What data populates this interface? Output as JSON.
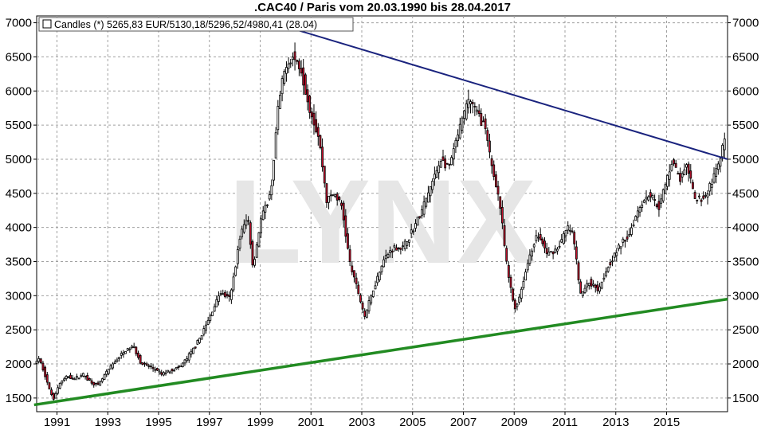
{
  "chart_data": {
    "type": "candlestick",
    "title": ".CAC40 / Paris vom 20.03.1990 bis 28.04.2017",
    "legend": {
      "label": "Candles (*) 5265,83 EUR/5130,18/5296,52/4980,41 (28.04)",
      "placement": "top-left"
    },
    "watermark": "LYNX",
    "y_axis": {
      "ticks": [
        1500,
        2000,
        2500,
        3000,
        3500,
        4000,
        4500,
        5000,
        5500,
        6000,
        6500,
        7000
      ],
      "ylim": [
        1300,
        7100
      ],
      "both_sides": true
    },
    "x_axis": {
      "ticks": [
        "1991",
        "1993",
        "1995",
        "1997",
        "1999",
        "2001",
        "2003",
        "2005",
        "2007",
        "2009",
        "2011",
        "2013",
        "2015"
      ],
      "xlim": [
        1990.2,
        2017.4
      ]
    },
    "grid": true,
    "colors": {
      "up": "#ffffff",
      "down": "#c8102e",
      "resistance": "#1a237e",
      "support": "#228b22",
      "grid": "#a0a0a0",
      "watermark": "#e6e6e6"
    },
    "trendlines": [
      {
        "name": "",
        "role": "resistance",
        "from": [
          1999.95,
          6950
        ],
        "to": [
          2017.4,
          5000
        ]
      },
      {
        "name": "",
        "role": "support",
        "from": [
          1990.1,
          1400
        ],
        "to": [
          2017.4,
          2950
        ]
      }
    ],
    "path_anchors": [
      [
        1990.2,
        2000
      ],
      [
        1990.35,
        2080
      ],
      [
        1990.55,
        1920
      ],
      [
        1990.8,
        1600
      ],
      [
        1990.95,
        1500
      ],
      [
        1991.2,
        1720
      ],
      [
        1991.5,
        1820
      ],
      [
        1991.8,
        1780
      ],
      [
        1992.1,
        1850
      ],
      [
        1992.4,
        1740
      ],
      [
        1992.7,
        1680
      ],
      [
        1993.0,
        1860
      ],
      [
        1993.4,
        2050
      ],
      [
        1993.8,
        2200
      ],
      [
        1994.1,
        2260
      ],
      [
        1994.4,
        2000
      ],
      [
        1994.8,
        1950
      ],
      [
        1995.2,
        1850
      ],
      [
        1995.5,
        1900
      ],
      [
        1995.9,
        1950
      ],
      [
        1996.2,
        2080
      ],
      [
        1996.6,
        2300
      ],
      [
        1997.0,
        2600
      ],
      [
        1997.5,
        3050
      ],
      [
        1997.9,
        2950
      ],
      [
        1998.3,
        3900
      ],
      [
        1998.6,
        4150
      ],
      [
        1998.8,
        3400
      ],
      [
        1999.1,
        4100
      ],
      [
        1999.5,
        4500
      ],
      [
        1999.8,
        5800
      ],
      [
        2000.1,
        6400
      ],
      [
        2000.4,
        6500
      ],
      [
        2000.7,
        6300
      ],
      [
        2001.0,
        5800
      ],
      [
        2001.4,
        5300
      ],
      [
        2001.7,
        4400
      ],
      [
        2002.0,
        4500
      ],
      [
        2002.3,
        4300
      ],
      [
        2002.6,
        3500
      ],
      [
        2002.9,
        3100
      ],
      [
        2003.2,
        2700
      ],
      [
        2003.5,
        3050
      ],
      [
        2003.9,
        3500
      ],
      [
        2004.3,
        3700
      ],
      [
        2004.7,
        3700
      ],
      [
        2005.0,
        3900
      ],
      [
        2005.4,
        4200
      ],
      [
        2005.8,
        4600
      ],
      [
        2006.2,
        5000
      ],
      [
        2006.5,
        4850
      ],
      [
        2006.9,
        5400
      ],
      [
        2007.3,
        5900
      ],
      [
        2007.6,
        5700
      ],
      [
        2007.9,
        5500
      ],
      [
        2008.2,
        4900
      ],
      [
        2008.5,
        4400
      ],
      [
        2008.8,
        3400
      ],
      [
        2009.1,
        2800
      ],
      [
        2009.3,
        3000
      ],
      [
        2009.7,
        3600
      ],
      [
        2010.0,
        3900
      ],
      [
        2010.4,
        3600
      ],
      [
        2010.8,
        3700
      ],
      [
        2011.2,
        4000
      ],
      [
        2011.4,
        3900
      ],
      [
        2011.7,
        3000
      ],
      [
        2012.0,
        3200
      ],
      [
        2012.4,
        3100
      ],
      [
        2012.8,
        3450
      ],
      [
        2013.2,
        3700
      ],
      [
        2013.6,
        3900
      ],
      [
        2014.0,
        4300
      ],
      [
        2014.4,
        4500
      ],
      [
        2014.8,
        4300
      ],
      [
        2015.3,
        5000
      ],
      [
        2015.6,
        4700
      ],
      [
        2015.9,
        4900
      ],
      [
        2016.2,
        4400
      ],
      [
        2016.6,
        4450
      ],
      [
        2016.9,
        4700
      ],
      [
        2017.2,
        5000
      ],
      [
        2017.33,
        5265
      ]
    ]
  }
}
